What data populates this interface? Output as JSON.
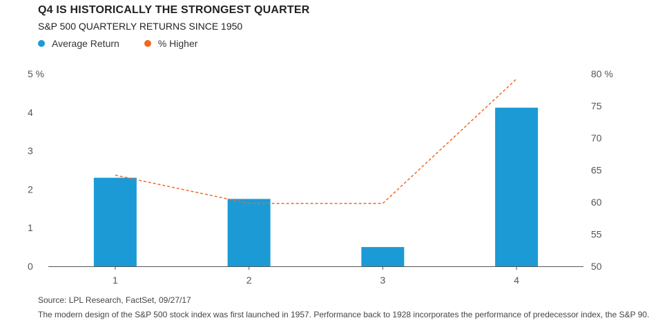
{
  "header": {
    "title": "Q4 IS HISTORICALLY THE STRONGEST QUARTER",
    "subtitle": "S&P 500 QUARTERLY RETURNS SINCE 1950"
  },
  "legend": {
    "items": [
      {
        "label": "Average Return",
        "color": "#1b9ad6"
      },
      {
        "label": "% Higher",
        "color": "#f26722"
      }
    ]
  },
  "chart_data": {
    "type": "bar",
    "categories": [
      "1",
      "2",
      "3",
      "4"
    ],
    "series": [
      {
        "name": "Average Return",
        "type": "bar",
        "axis": "left",
        "values": [
          2.3,
          1.75,
          0.5,
          4.12
        ],
        "color": "#1b9ad6"
      },
      {
        "name": "% Higher",
        "type": "line",
        "axis": "right",
        "style": "dashed",
        "values": [
          64.2,
          59.8,
          59.8,
          79.2
        ],
        "color": "#f26722"
      }
    ],
    "yleft": {
      "min": 0,
      "max": 5,
      "ticks": [
        "0",
        "1",
        "2",
        "3",
        "4",
        "5 %"
      ]
    },
    "yright": {
      "min": 50,
      "max": 80,
      "ticks": [
        "50",
        "55",
        "60",
        "65",
        "70",
        "75",
        "80 %"
      ]
    },
    "grid": false,
    "legend_position": "top-left"
  },
  "footer": {
    "source": "Source: LPL Research, FactSet,    09/27/17",
    "note": "The modern design of the S&P 500 stock index was first launched in 1957. Performance back to 1928 incorporates the performance of predecessor index, the S&P 90."
  }
}
